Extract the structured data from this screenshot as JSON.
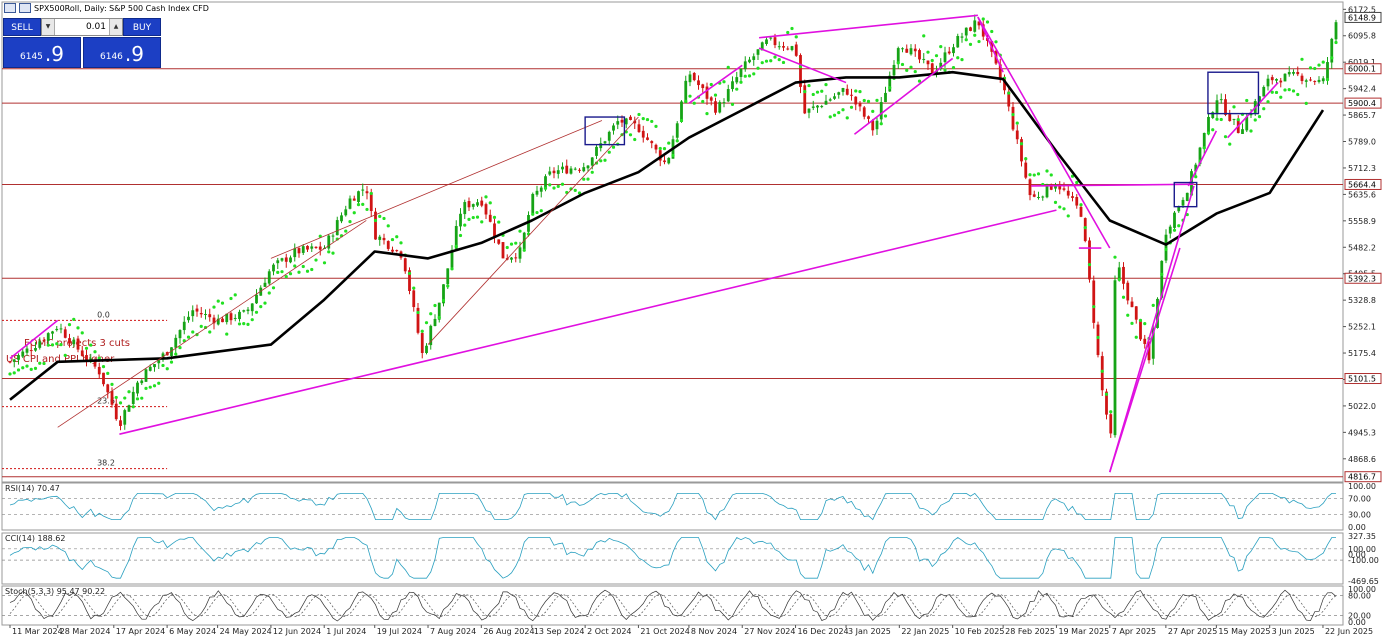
{
  "window": {
    "title": "SPX500Roll, Daily:  S&P 500 Cash Index CFD"
  },
  "trade_panel": {
    "sell_label": "SELL",
    "buy_label": "BUY",
    "lot_value": "0.01",
    "sell_small": "6145",
    "sell_big": ".9",
    "buy_small": "6146",
    "buy_big": ".9"
  },
  "chart_data": [
    {
      "type": "candlestick",
      "symbol": "SPX500Roll",
      "timeframe": "Daily",
      "title": "SPX500Roll, Daily:  S&P 500 Cash Index CFD",
      "price_axis_labels": [
        "6172.5",
        "6095.8",
        "6019.1",
        "5942.4",
        "5865.7",
        "5789.0",
        "5712.3",
        "5635.6",
        "5558.9",
        "5482.2",
        "5405.5",
        "5328.8",
        "5252.1",
        "5175.4",
        "5098.7",
        "5022.0",
        "4945.3",
        "4868.6"
      ],
      "ylim": [
        4810,
        6185
      ],
      "x_tick_labels": [
        "11 Mar 2024",
        "28 Mar 2024",
        "17 Apr 2024",
        "6 May 2024",
        "24 May 2024",
        "12 Jun 2024",
        "1 Jul 2024",
        "19 Jul 2024",
        "7 Aug 2024",
        "26 Aug 2024",
        "13 Sep 2024",
        "2 Oct 2024",
        "21 Oct 2024",
        "8 Nov 2024",
        "27 Nov 2024",
        "16 Dec 2024",
        "3 Jan 2025",
        "22 Jan 2025",
        "10 Feb 2025",
        "28 Feb 2025",
        "19 Mar 2025",
        "7 Apr 2025",
        "27 Apr 2025",
        "15 May 2025",
        "3 Jun 2025",
        "22 Jun 2025"
      ],
      "current_price": "6148.9",
      "horizontal_levels": [
        {
          "label": "6000.1",
          "value": 6000.1
        },
        {
          "label": "5900.4",
          "value": 5900.4
        },
        {
          "label": "5664.4",
          "value": 5664.4
        },
        {
          "label": "5392.3",
          "value": 5392.3
        },
        {
          "label": "5101.5",
          "value": 5101.5
        },
        {
          "label": "4816.7",
          "value": 4816.7
        }
      ],
      "fib_levels": [
        {
          "label": "0.0",
          "value": 5270
        },
        {
          "label": "23.6",
          "value": 5020
        },
        {
          "label": "38.2",
          "value": 4840
        }
      ],
      "annotations": [
        "FOMC projects 3 cuts",
        "US CPI and PPI higher"
      ],
      "close_path": [
        {
          "x": "11 Mar 2024",
          "y": 5150
        },
        {
          "x": "20 Mar 2024",
          "y": 5200
        },
        {
          "x": "28 Mar 2024",
          "y": 5255
        },
        {
          "x": "5 Apr 2024",
          "y": 5180
        },
        {
          "x": "12 Apr 2024",
          "y": 5120
        },
        {
          "x": "19 Apr 2024",
          "y": 4970
        },
        {
          "x": "26 Apr 2024",
          "y": 5100
        },
        {
          "x": "6 May 2024",
          "y": 5180
        },
        {
          "x": "15 May 2024",
          "y": 5300
        },
        {
          "x": "24 May 2024",
          "y": 5270
        },
        {
          "x": "3 Jun 2024",
          "y": 5290
        },
        {
          "x": "12 Jun 2024",
          "y": 5420
        },
        {
          "x": "21 Jun 2024",
          "y": 5470
        },
        {
          "x": "1 Jul 2024",
          "y": 5480
        },
        {
          "x": "10 Jul 2024",
          "y": 5620
        },
        {
          "x": "16 Jul 2024",
          "y": 5660
        },
        {
          "x": "19 Jul 2024",
          "y": 5520
        },
        {
          "x": "29 Jul 2024",
          "y": 5460
        },
        {
          "x": "5 Aug 2024",
          "y": 5170
        },
        {
          "x": "12 Aug 2024",
          "y": 5350
        },
        {
          "x": "19 Aug 2024",
          "y": 5600
        },
        {
          "x": "26 Aug 2024",
          "y": 5620
        },
        {
          "x": "3 Sep 2024",
          "y": 5450
        },
        {
          "x": "9 Sep 2024",
          "y": 5470
        },
        {
          "x": "13 Sep 2024",
          "y": 5620
        },
        {
          "x": "20 Sep 2024",
          "y": 5700
        },
        {
          "x": "2 Oct 2024",
          "y": 5720
        },
        {
          "x": "14 Oct 2024",
          "y": 5850
        },
        {
          "x": "21 Oct 2024",
          "y": 5830
        },
        {
          "x": "31 Oct 2024",
          "y": 5720
        },
        {
          "x": "8 Nov 2024",
          "y": 5990
        },
        {
          "x": "18 Nov 2024",
          "y": 5880
        },
        {
          "x": "27 Nov 2024",
          "y": 6000
        },
        {
          "x": "6 Dec 2024",
          "y": 6080
        },
        {
          "x": "16 Dec 2024",
          "y": 6060
        },
        {
          "x": "19 Dec 2024",
          "y": 5870
        },
        {
          "x": "3 Jan 2025",
          "y": 5940
        },
        {
          "x": "13 Jan 2025",
          "y": 5820
        },
        {
          "x": "22 Jan 2025",
          "y": 6080
        },
        {
          "x": "3 Feb 2025",
          "y": 5990
        },
        {
          "x": "10 Feb 2025",
          "y": 6070
        },
        {
          "x": "19 Feb 2025",
          "y": 6140
        },
        {
          "x": "28 Feb 2025",
          "y": 5950
        },
        {
          "x": "10 Mar 2025",
          "y": 5620
        },
        {
          "x": "19 Mar 2025",
          "y": 5670
        },
        {
          "x": "28 Mar 2025",
          "y": 5580
        },
        {
          "x": "4 Apr 2025",
          "y": 5080
        },
        {
          "x": "8 Apr 2025",
          "y": 4900
        },
        {
          "x": "9 Apr 2025",
          "y": 5450
        },
        {
          "x": "21 Apr 2025",
          "y": 5150
        },
        {
          "x": "27 Apr 2025",
          "y": 5530
        },
        {
          "x": "5 May 2025",
          "y": 5660
        },
        {
          "x": "15 May 2025",
          "y": 5920
        },
        {
          "x": "23 May 2025",
          "y": 5820
        },
        {
          "x": "3 Jun 2025",
          "y": 5970
        },
        {
          "x": "13 Jun 2025",
          "y": 5980
        },
        {
          "x": "22 Jun 2025",
          "y": 5960
        },
        {
          "x": "27 Jun 2025",
          "y": 6148.9
        }
      ],
      "moving_average_path": [
        {
          "x": "11 Mar 2024",
          "y": 5040
        },
        {
          "x": "28 Mar 2024",
          "y": 5150
        },
        {
          "x": "6 May 2024",
          "y": 5160
        },
        {
          "x": "12 Jun 2024",
          "y": 5200
        },
        {
          "x": "1 Jul 2024",
          "y": 5330
        },
        {
          "x": "19 Jul 2024",
          "y": 5470
        },
        {
          "x": "7 Aug 2024",
          "y": 5450
        },
        {
          "x": "26 Aug 2024",
          "y": 5495
        },
        {
          "x": "13 Sep 2024",
          "y": 5560
        },
        {
          "x": "2 Oct 2024",
          "y": 5640
        },
        {
          "x": "21 Oct 2024",
          "y": 5700
        },
        {
          "x": "8 Nov 2024",
          "y": 5800
        },
        {
          "x": "27 Nov 2024",
          "y": 5880
        },
        {
          "x": "16 Dec 2024",
          "y": 5960
        },
        {
          "x": "3 Jan 2025",
          "y": 5975
        },
        {
          "x": "22 Jan 2025",
          "y": 5975
        },
        {
          "x": "10 Feb 2025",
          "y": 5990
        },
        {
          "x": "28 Feb 2025",
          "y": 5970
        },
        {
          "x": "19 Mar 2025",
          "y": 5760
        },
        {
          "x": "7 Apr 2025",
          "y": 5560
        },
        {
          "x": "27 Apr 2025",
          "y": 5490
        },
        {
          "x": "15 May 2025",
          "y": 5580
        },
        {
          "x": "3 Jun 2025",
          "y": 5640
        },
        {
          "x": "22 Jun 2025",
          "y": 5880
        }
      ]
    },
    {
      "type": "line",
      "indicator": "RSI(14)",
      "label": "RSI(14) 70.47",
      "last_value": 70.47,
      "axis_labels": [
        "100.00",
        "70.00",
        "30.00",
        "0.00"
      ],
      "ylim": [
        0,
        100
      ],
      "levels": [
        70,
        30
      ]
    },
    {
      "type": "line",
      "indicator": "CCI(14)",
      "label": "CCI(14) 188.62",
      "last_value": 188.62,
      "axis_labels": [
        "327.35",
        "100.00",
        "0.00",
        "-100.00",
        "-469.65"
      ],
      "ylim": [
        -469.65,
        327.35
      ],
      "levels": [
        100,
        -100
      ]
    },
    {
      "type": "line",
      "indicator": "Stoch(5,3,3)",
      "label": "Stoch(5,3,3) 95.47 90.22",
      "values": [
        95.47,
        90.22
      ],
      "axis_labels": [
        "100.00",
        "80.00",
        "20.00",
        "0.00"
      ],
      "ylim": [
        0,
        100
      ],
      "levels": [
        80,
        20
      ]
    }
  ],
  "colors": {
    "bull": "#16a316",
    "bear": "#d01414",
    "psar": "#22e022",
    "trend": "#e010e0",
    "ma": "#000000",
    "level_line": "#b03030",
    "indicator_line": "#2aa0c0",
    "box": "#1a1a8c"
  }
}
